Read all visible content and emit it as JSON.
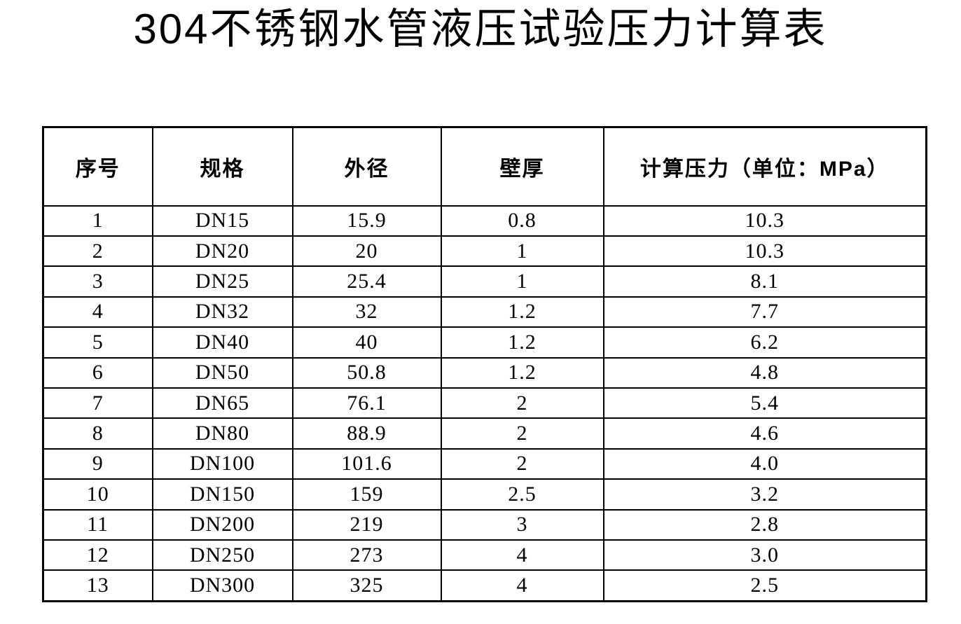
{
  "page": {
    "background": "#ffffff",
    "text_color": "#000000",
    "border_color": "#000000"
  },
  "title": "304不锈钢水管液压试验压力计算表",
  "table": {
    "headers": [
      "序号",
      "规格",
      "外径",
      "壁厚",
      "计算压力（单位：MPa）"
    ],
    "pressure_unit": "MPa",
    "rows": [
      {
        "seq": "1",
        "spec": "DN15",
        "od": "15.9",
        "wall": "0.8",
        "pressure": "10.3"
      },
      {
        "seq": "2",
        "spec": "DN20",
        "od": "20",
        "wall": "1",
        "pressure": "10.3"
      },
      {
        "seq": "3",
        "spec": "DN25",
        "od": "25.4",
        "wall": "1",
        "pressure": "8.1"
      },
      {
        "seq": "4",
        "spec": "DN32",
        "od": "32",
        "wall": "1.2",
        "pressure": "7.7"
      },
      {
        "seq": "5",
        "spec": "DN40",
        "od": "40",
        "wall": "1.2",
        "pressure": "6.2"
      },
      {
        "seq": "6",
        "spec": "DN50",
        "od": "50.8",
        "wall": "1.2",
        "pressure": "4.8"
      },
      {
        "seq": "7",
        "spec": "DN65",
        "od": "76.1",
        "wall": "2",
        "pressure": "5.4"
      },
      {
        "seq": "8",
        "spec": "DN80",
        "od": "88.9",
        "wall": "2",
        "pressure": "4.6"
      },
      {
        "seq": "9",
        "spec": "DN100",
        "od": "101.6",
        "wall": "2",
        "pressure": "4.0"
      },
      {
        "seq": "10",
        "spec": "DN150",
        "od": "159",
        "wall": "2.5",
        "pressure": "3.2"
      },
      {
        "seq": "11",
        "spec": "DN200",
        "od": "219",
        "wall": "3",
        "pressure": "2.8"
      },
      {
        "seq": "12",
        "spec": "DN250",
        "od": "273",
        "wall": "4",
        "pressure": "3.0"
      },
      {
        "seq": "13",
        "spec": "DN300",
        "od": "325",
        "wall": "4",
        "pressure": "2.5"
      }
    ]
  }
}
